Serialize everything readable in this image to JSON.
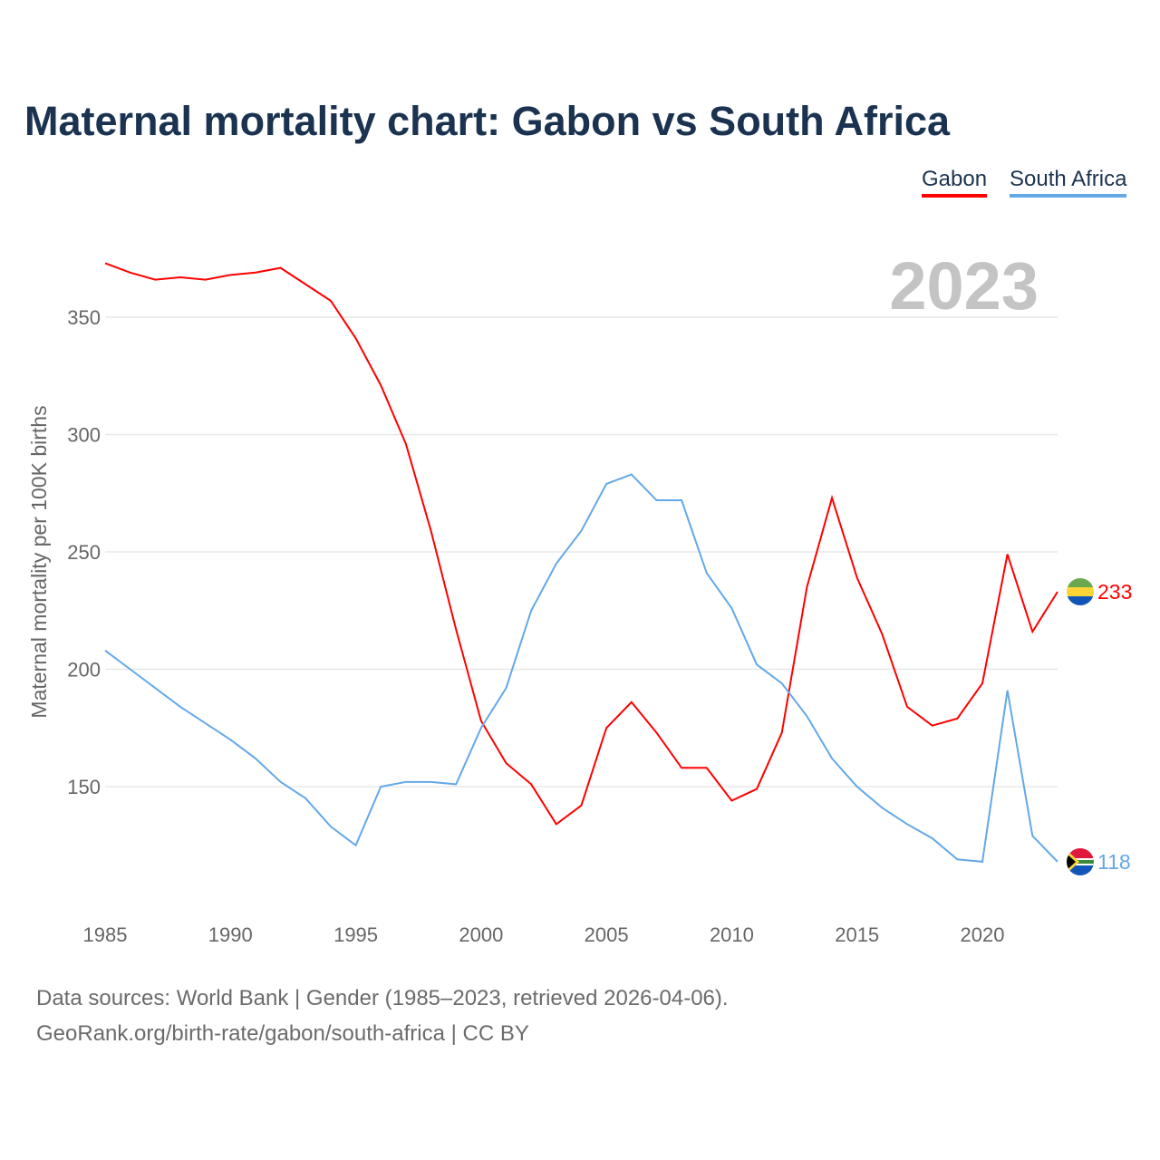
{
  "title": "Maternal mortality chart: Gabon vs South Africa",
  "footer": {
    "line1": "Data sources: World Bank | Gender (1985–2023, retrieved 2026-04-06).",
    "line2": "GeoRank.org/birth-rate/gabon/south-africa | CC BY"
  },
  "chart_data": {
    "type": "line",
    "title": "Maternal mortality chart: Gabon vs South Africa",
    "ylabel": "Maternal mortality per 100K births",
    "xlabel": "",
    "year_label": "2023",
    "x": [
      1985,
      1986,
      1987,
      1988,
      1989,
      1990,
      1991,
      1992,
      1993,
      1994,
      1995,
      1996,
      1997,
      1998,
      1999,
      2000,
      2001,
      2002,
      2003,
      2004,
      2005,
      2006,
      2007,
      2008,
      2009,
      2010,
      2011,
      2012,
      2013,
      2014,
      2015,
      2016,
      2017,
      2018,
      2019,
      2020,
      2021,
      2022,
      2023
    ],
    "xticks": [
      "1985",
      "1990",
      "1995",
      "2000",
      "2005",
      "2010",
      "2015",
      "2020"
    ],
    "yticks": [
      "150",
      "200",
      "250",
      "300",
      "350"
    ],
    "legend_position": "top-right",
    "series": [
      {
        "name": "Gabon",
        "color": "#ff0000",
        "last_label": "233",
        "values": [
          373,
          369,
          366,
          367,
          366,
          368,
          369,
          371,
          364,
          357,
          341,
          321,
          296,
          259,
          217,
          178,
          160,
          151,
          134,
          142,
          175,
          186,
          173,
          158,
          158,
          144,
          149,
          173,
          235,
          273,
          239,
          215,
          184,
          176,
          179,
          194,
          249,
          216,
          233
        ]
      },
      {
        "name": "South Africa",
        "color": "#64a8e8",
        "last_label": "118",
        "values": [
          208,
          200,
          192,
          184,
          177,
          170,
          162,
          152,
          145,
          133,
          125,
          150,
          152,
          152,
          151,
          175,
          192,
          225,
          245,
          259,
          279,
          283,
          272,
          272,
          241,
          226,
          202,
          194,
          180,
          162,
          150,
          141,
          134,
          128,
          119,
          118,
          191,
          129,
          118
        ]
      }
    ]
  }
}
